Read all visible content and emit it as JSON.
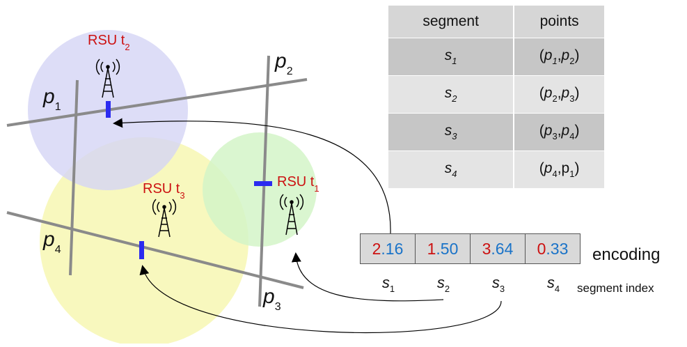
{
  "labels": {
    "rsu_t2": "RSU t",
    "rsu_t2_sub": "2",
    "rsu_t3": "RSU t",
    "rsu_t3_sub": "3",
    "rsu_t1": "RSU t",
    "rsu_t1_sub": "1",
    "p1": "p",
    "p1_sub": "1",
    "p2": "p",
    "p2_sub": "2",
    "p3": "p",
    "p3_sub": "3",
    "p4": "p",
    "p4_sub": "4"
  },
  "table": {
    "headers": [
      "segment",
      "points"
    ],
    "rows": [
      {
        "seg": "s",
        "seg_sub": "1",
        "points": "(p1,p2)"
      },
      {
        "seg": "s",
        "seg_sub": "2",
        "points": "(p2,p3)"
      },
      {
        "seg": "s",
        "seg_sub": "3",
        "points": "(p3,p4)"
      },
      {
        "seg": "s",
        "seg_sub": "4",
        "points": "(p4,p1)"
      }
    ]
  },
  "encoding": {
    "cells": [
      {
        "int": "2",
        "frac": ".16"
      },
      {
        "int": "1",
        "frac": ".50"
      },
      {
        "int": "3",
        "frac": ".64"
      },
      {
        "int": "0",
        "frac": ".33"
      }
    ],
    "label": "encoding",
    "index": [
      {
        "s": "s",
        "sub": "1"
      },
      {
        "s": "s",
        "sub": "2"
      },
      {
        "s": "s",
        "sub": "3"
      },
      {
        "s": "s",
        "sub": "4"
      }
    ],
    "index_label": "segment index"
  },
  "colors": {
    "rsu_text": "#cc1111",
    "integer": "#cc1111",
    "fraction": "#1a73c8",
    "marker": "#2b2bf0",
    "coverage_t2": "#dcdcf7",
    "coverage_t3": "#f7f7b8",
    "coverage_t1": "#d8f5cf",
    "road": "#8c8c8c"
  }
}
